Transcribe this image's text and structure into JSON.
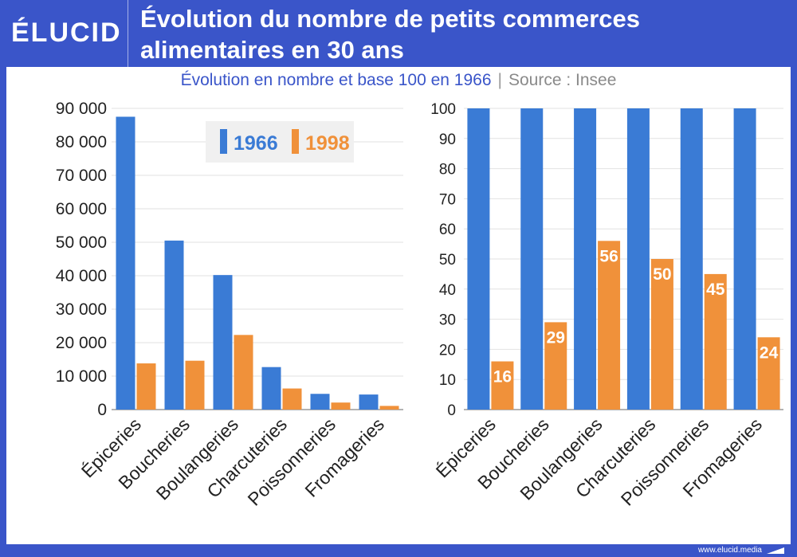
{
  "header": {
    "logo": "ÉLUCID",
    "title_line1": "Évolution du nombre de petits commerces",
    "title_line2": "alimentaires en 30 ans"
  },
  "subtitle": {
    "main": "Évolution en nombre et base 100 en 1966",
    "separator": "|",
    "source": "Source : Insee"
  },
  "footer": {
    "url": "www.elucid.media"
  },
  "colors": {
    "background": "#3a55c9",
    "series_1966": "#3a7bd5",
    "series_1998": "#f0913a",
    "legend_bg": "#f0f0f0"
  },
  "chart_data": [
    {
      "type": "bar",
      "categories": [
        "Épiceries",
        "Boucheries",
        "Boulangeries",
        "Charcuteries",
        "Poissonneries",
        "Fromageries"
      ],
      "series": [
        {
          "name": "1966",
          "values": [
            87500,
            50500,
            40200,
            12700,
            4700,
            4500
          ]
        },
        {
          "name": "1998",
          "values": [
            13800,
            14600,
            22300,
            6300,
            2100,
            1100
          ]
        }
      ],
      "ylim": [
        0,
        90000
      ],
      "yticks": [
        "0",
        "10 000",
        "20 000",
        "30 000",
        "40 000",
        "50 000",
        "60 000",
        "70 000",
        "80 000",
        "90 000"
      ],
      "legend": {
        "position": "top-right",
        "entries": [
          "1966",
          "1998"
        ]
      },
      "grid": true
    },
    {
      "type": "bar",
      "categories": [
        "Épiceries",
        "Boucheries",
        "Boulangeries",
        "Charcuteries",
        "Poissonneries",
        "Fromageries"
      ],
      "series": [
        {
          "name": "1966",
          "values": [
            100,
            100,
            100,
            100,
            100,
            100
          ]
        },
        {
          "name": "1998",
          "values": [
            16,
            29,
            56,
            50,
            45,
            24
          ],
          "data_labels": [
            "16",
            "29",
            "56",
            "50",
            "45",
            "24"
          ]
        }
      ],
      "ylim": [
        0,
        100
      ],
      "yticks": [
        "0",
        "10",
        "20",
        "30",
        "40",
        "50",
        "60",
        "70",
        "80",
        "90",
        "100"
      ],
      "grid": true
    }
  ]
}
